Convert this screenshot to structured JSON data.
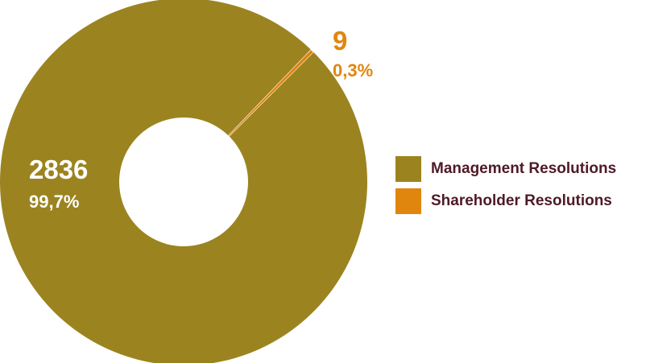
{
  "chart_data": {
    "type": "pie",
    "donut": true,
    "categories": [
      "Management Resolutions",
      "Shareholder Resolutions"
    ],
    "values": [
      2836,
      9
    ],
    "data_labels": [
      {
        "value": "2836",
        "percent": "99,7%"
      },
      {
        "value": "9",
        "percent": "0,3%"
      }
    ],
    "legend": [
      "Management Resolutions",
      "Shareholder Resolutions"
    ],
    "legend_position": "right",
    "colors": [
      "#9b8420",
      "#e0860e"
    ]
  },
  "colors": {
    "label_inside": "#ffffff",
    "legend_text": "#4e1a26"
  }
}
